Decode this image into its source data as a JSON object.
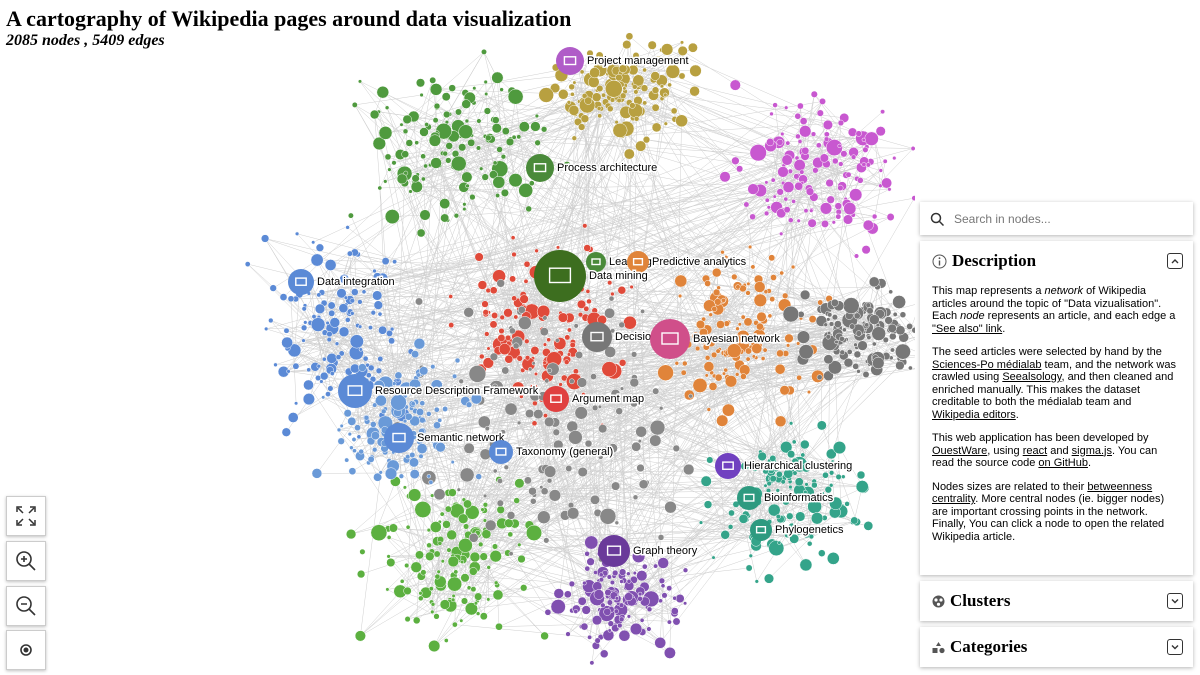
{
  "header": {
    "title": "A cartography of Wikipedia pages around data visualization",
    "subtitle": "2085 nodes , 5409 edges"
  },
  "search": {
    "placeholder": "Search in nodes..."
  },
  "panels": {
    "description": {
      "title": "Description",
      "paragraphs": [
        [
          "This map represents a ",
          "network",
          " of Wikipedia articles around the topic of \"Data vizualisation\". Each ",
          "node",
          " represents an article, and each edge a ",
          "\"See also\" link",
          "."
        ],
        [
          "The seed articles were selected by hand by the ",
          "Sciences-Po médialab",
          " team, and the network was crawled using ",
          "Seealsology",
          ", and then cleaned and enriched manually. This makes the dataset creditable to both the médialab team and ",
          "Wikipedia editors",
          "."
        ],
        [
          "This web application has been developed by ",
          "OuestWare",
          ", using ",
          "react",
          " and ",
          "sigma.js",
          ". You can read the source code ",
          "on GitHub",
          "."
        ],
        [
          "Nodes sizes are related to their ",
          "betweenness centrality",
          ". More central nodes (ie. bigger nodes) are important crossing points in the network. Finally, You can click a node to open the related Wikipedia article."
        ]
      ]
    },
    "clusters": {
      "title": "Clusters"
    },
    "categories": {
      "title": "Categories"
    }
  },
  "nodes": [
    {
      "label": "Project management"
    },
    {
      "label": "Process architecture"
    },
    {
      "label": "Learning"
    },
    {
      "label": "Predictive analytics"
    },
    {
      "label": "Data mining"
    },
    {
      "label": "Data integration"
    },
    {
      "label": "Decision tree"
    },
    {
      "label": "Bayesian network"
    },
    {
      "label": "Resource Description Framework"
    },
    {
      "label": "Argument map"
    },
    {
      "label": "Semantic network"
    },
    {
      "label": "Taxonomy (general)"
    },
    {
      "label": "Hierarchical clustering"
    },
    {
      "label": "Bioinformatics"
    },
    {
      "label": "Phylogenetics"
    },
    {
      "label": "Graph theory"
    }
  ]
}
